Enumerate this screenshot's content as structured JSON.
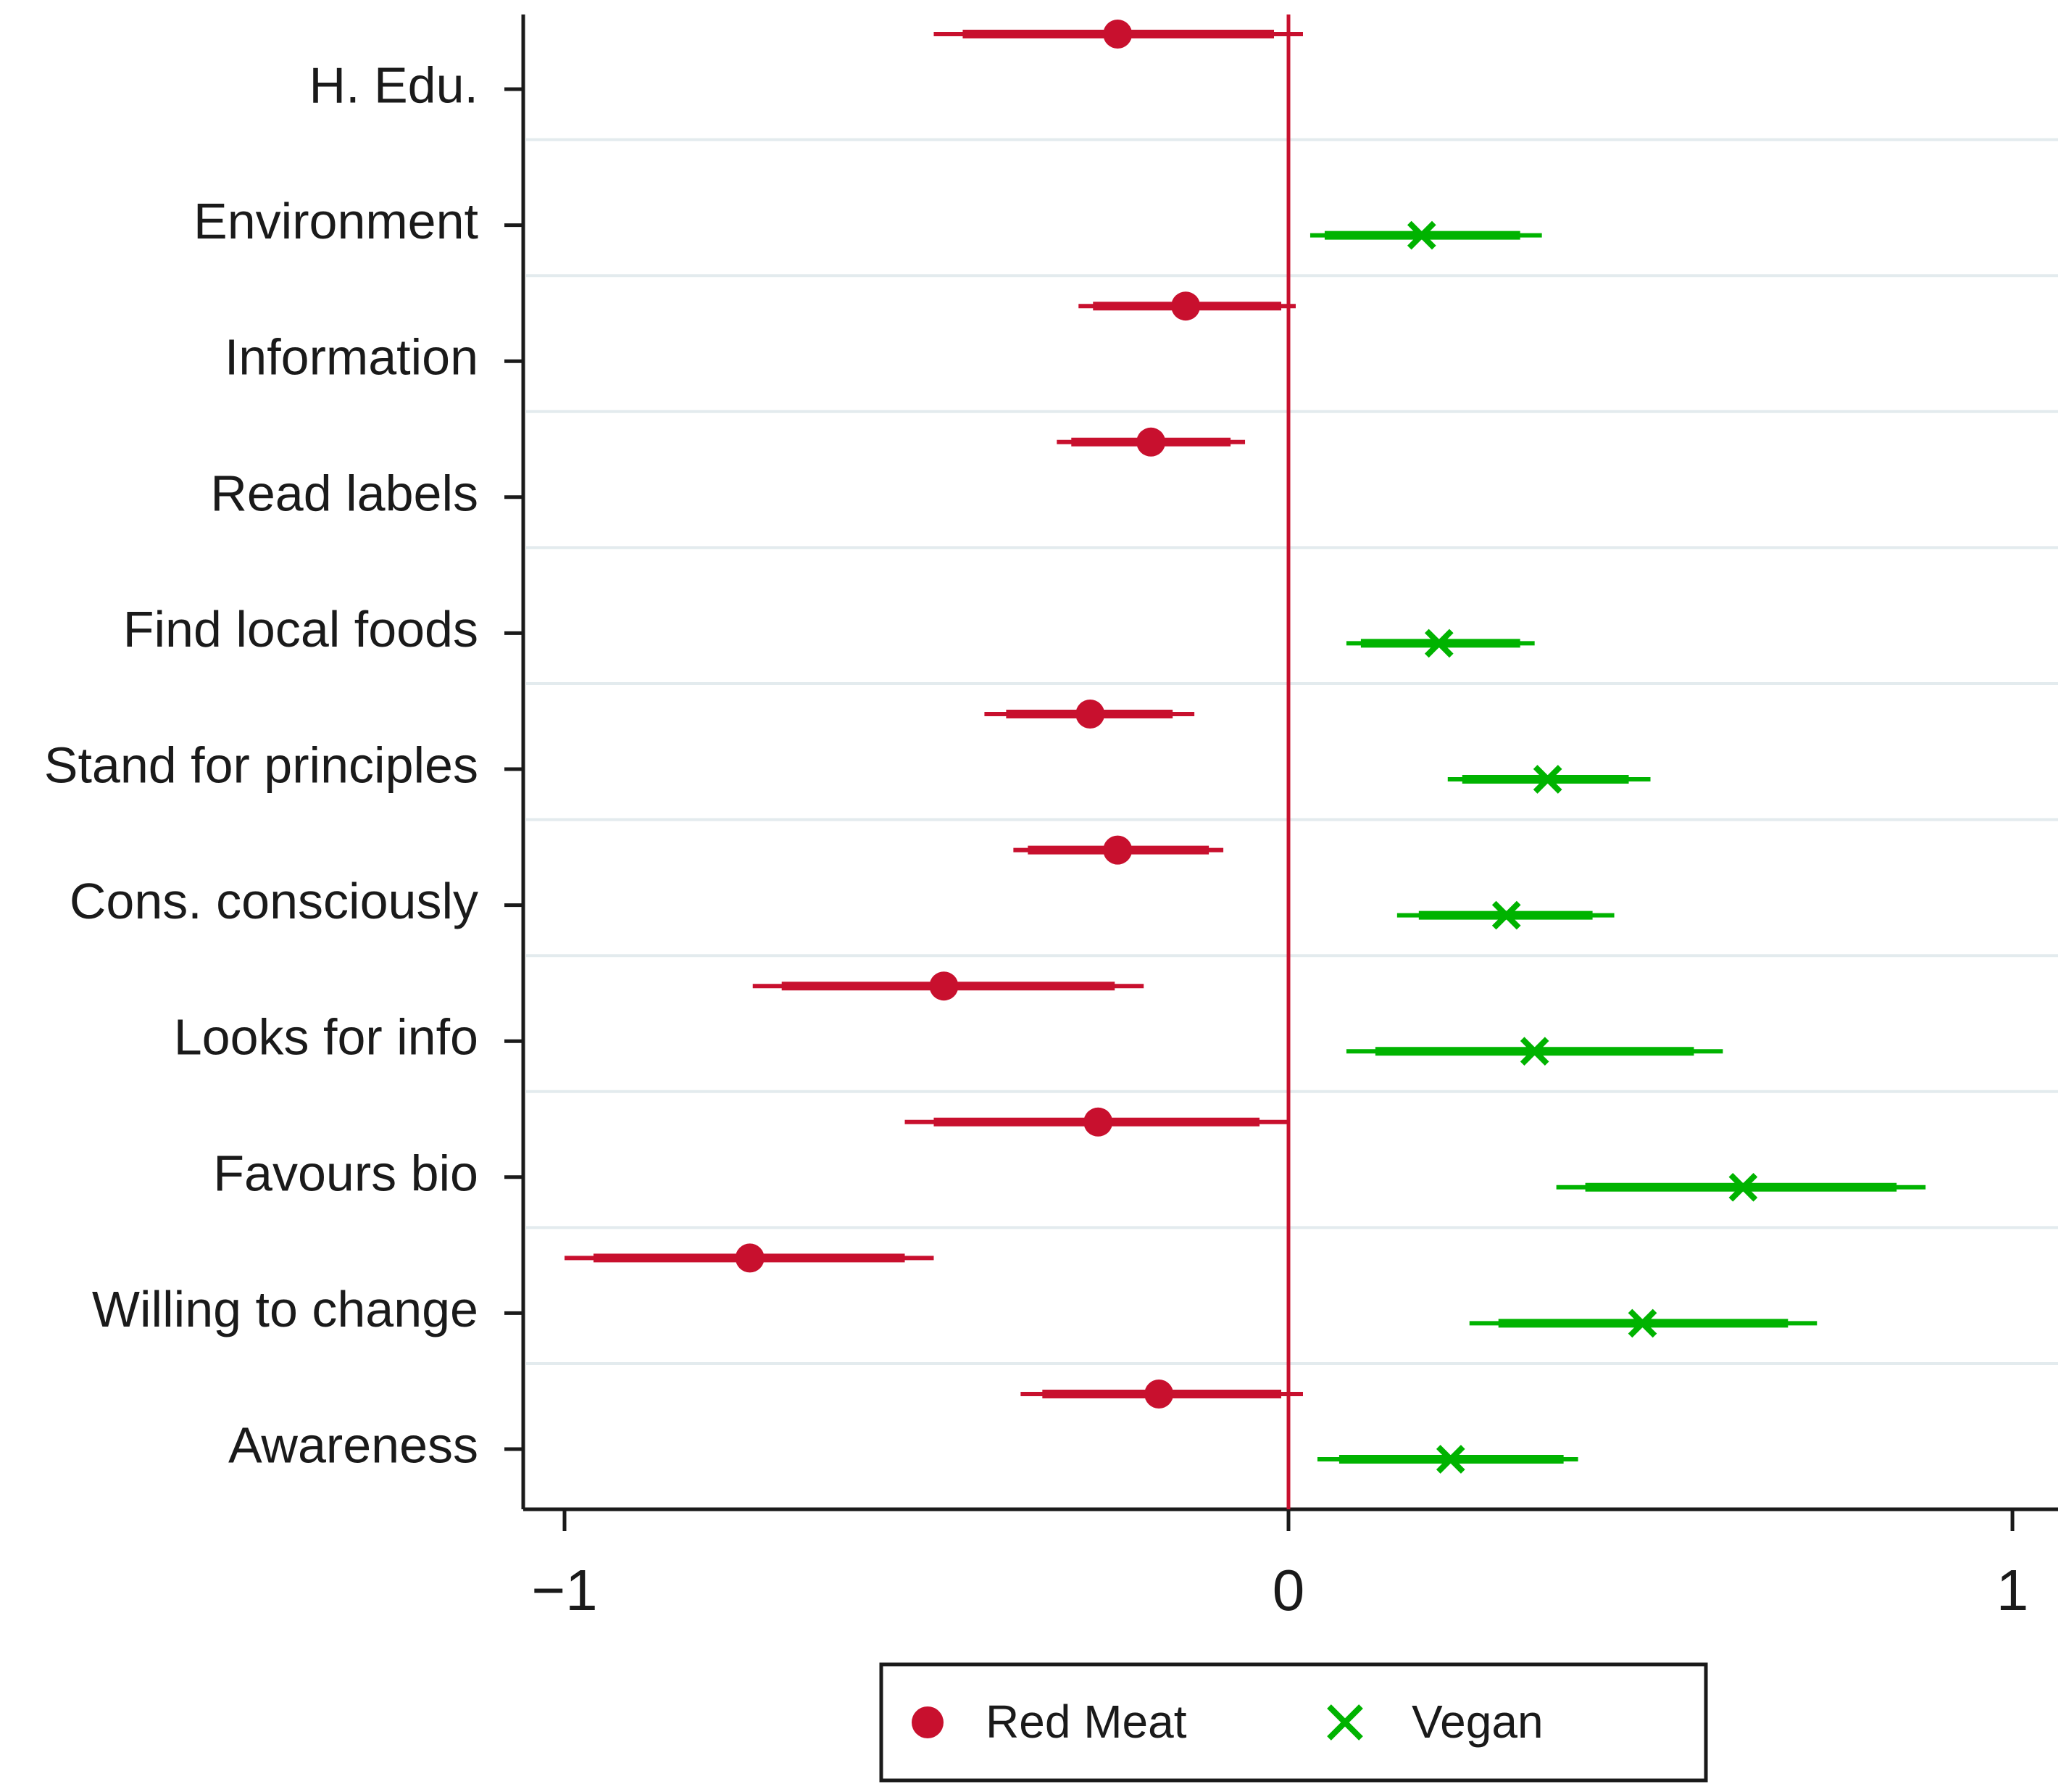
{
  "chart_data": {
    "type": "coefficient-plot",
    "title": "",
    "xlabel": "",
    "ylabel": "",
    "xlim": [
      -1.06,
      1.06
    ],
    "x_ticks": [
      -1,
      0,
      1
    ],
    "x_tick_labels": [
      "−1",
      "0",
      "1"
    ],
    "reference_line": 0,
    "grid": true,
    "legend_position": "bottom-center",
    "categories": [
      "H. Edu.",
      "Environment",
      "Information",
      "Read labels",
      "Find local foods",
      "Stand for principles",
      "Cons. consciously",
      "Looks for info",
      "Favours bio",
      "Willing to change",
      "Awareness"
    ],
    "series": [
      {
        "name": "Red Meat",
        "marker": "circle",
        "color": "#c8102e",
        "points": [
          {
            "category": "H. Edu.",
            "value": -0.236,
            "ci90": [
              -0.45,
              -0.02
            ],
            "ci95": [
              -0.49,
              0.02
            ]
          },
          {
            "category": "Information",
            "value": -0.142,
            "ci90": [
              -0.27,
              -0.01
            ],
            "ci95": [
              -0.29,
              0.01
            ]
          },
          {
            "category": "Read labels",
            "value": -0.19,
            "ci90": [
              -0.3,
              -0.08
            ],
            "ci95": [
              -0.32,
              -0.06
            ]
          },
          {
            "category": "Stand for principles",
            "value": -0.274,
            "ci90": [
              -0.39,
              -0.16
            ],
            "ci95": [
              -0.42,
              -0.13
            ]
          },
          {
            "category": "Cons. consciously",
            "value": -0.236,
            "ci90": [
              -0.36,
              -0.11
            ],
            "ci95": [
              -0.38,
              -0.09
            ]
          },
          {
            "category": "Looks for info",
            "value": -0.476,
            "ci90": [
              -0.7,
              -0.24
            ],
            "ci95": [
              -0.74,
              -0.2
            ]
          },
          {
            "category": "Favours bio",
            "value": -0.263,
            "ci90": [
              -0.49,
              -0.04
            ],
            "ci95": [
              -0.53,
              0.0
            ]
          },
          {
            "category": "Willing to change",
            "value": -0.744,
            "ci90": [
              -0.96,
              -0.53
            ],
            "ci95": [
              -1.0,
              -0.49
            ]
          },
          {
            "category": "Awareness",
            "value": -0.179,
            "ci90": [
              -0.34,
              -0.01
            ],
            "ci95": [
              -0.37,
              0.02
            ]
          }
        ]
      },
      {
        "name": "Vegan",
        "marker": "x",
        "color": "#00b300",
        "points": [
          {
            "category": "Environment",
            "value": 0.184,
            "ci90": [
              0.05,
              0.32
            ],
            "ci95": [
              0.03,
              0.35
            ]
          },
          {
            "category": "Find local foods",
            "value": 0.208,
            "ci90": [
              0.1,
              0.32
            ],
            "ci95": [
              0.08,
              0.34
            ]
          },
          {
            "category": "Stand for principles",
            "value": 0.358,
            "ci90": [
              0.24,
              0.47
            ],
            "ci95": [
              0.22,
              0.5
            ]
          },
          {
            "category": "Cons. consciously",
            "value": 0.301,
            "ci90": [
              0.18,
              0.42
            ],
            "ci95": [
              0.15,
              0.45
            ]
          },
          {
            "category": "Looks for info",
            "value": 0.34,
            "ci90": [
              0.12,
              0.56
            ],
            "ci95": [
              0.08,
              0.6
            ]
          },
          {
            "category": "Favours bio",
            "value": 0.628,
            "ci90": [
              0.41,
              0.84
            ],
            "ci95": [
              0.37,
              0.88
            ]
          },
          {
            "category": "Willing to change",
            "value": 0.489,
            "ci90": [
              0.29,
              0.69
            ],
            "ci95": [
              0.25,
              0.73
            ]
          },
          {
            "category": "Awareness",
            "value": 0.224,
            "ci90": [
              0.07,
              0.38
            ],
            "ci95": [
              0.04,
              0.4
            ]
          }
        ]
      }
    ],
    "legend": {
      "entries": [
        {
          "label": "Red Meat",
          "marker": "circle",
          "color": "#c8102e"
        },
        {
          "label": "Vegan",
          "marker": "x",
          "color": "#00b300"
        }
      ]
    },
    "colors": {
      "axis": "#1a1a1a",
      "grid": "#e3ebee",
      "reference_line": "#c8102e"
    }
  }
}
